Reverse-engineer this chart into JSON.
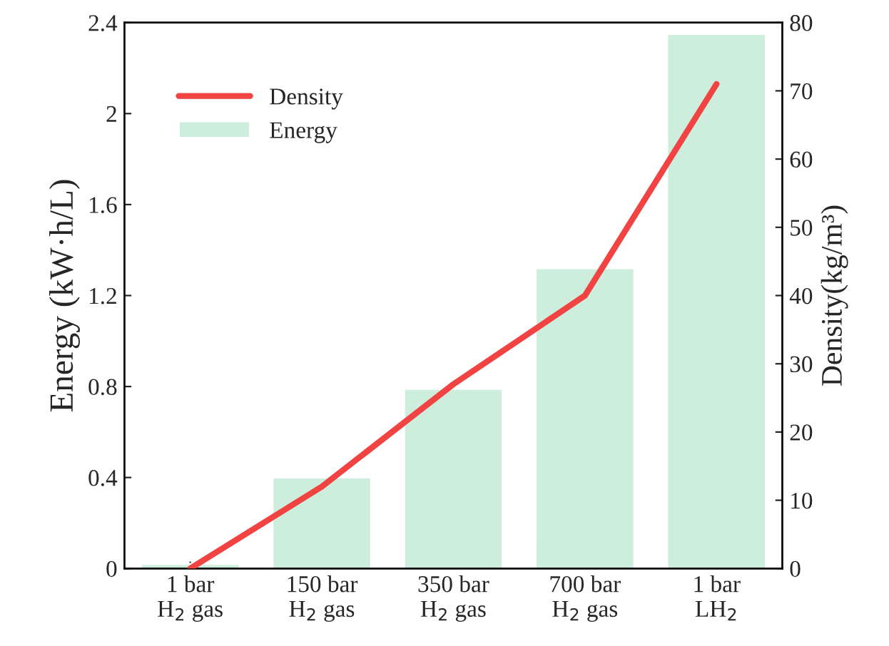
{
  "chart_data": {
    "type": "bar",
    "categories": [
      "1 bar\nH$_{2}$ gas",
      "150 bar\nH$_{2}$ gas",
      "350 bar\nH$_{2}$ gas",
      "700 bar\nH$_{2}$ gas",
      "1 bar\nLH$_{2}$"
    ],
    "ylabel": "Energy (kW·h/L)",
    "y2label": "Density(kg/m³)",
    "series": [
      {
        "name": "Energy",
        "color": "#cdeedd",
        "values": [
          0.02,
          0.4,
          0.79,
          1.32,
          2.35
        ]
      },
      {
        "name": "Density",
        "type": "line",
        "axis": "y2",
        "color": "#f24343",
        "values": [
          0,
          12,
          27,
          40,
          71
        ]
      }
    ],
    "ylim": [
      0,
      2.4
    ],
    "yticks": [
      0,
      0.4,
      0.8,
      1.2,
      1.6,
      2,
      2.4
    ],
    "y2lim": [
      0,
      80
    ],
    "y2ticks": [
      0,
      10,
      20,
      30,
      40,
      50,
      60,
      70,
      80
    ],
    "legend": "top left",
    "grid": false,
    "marker": "none",
    "line_style": "solid"
  }
}
